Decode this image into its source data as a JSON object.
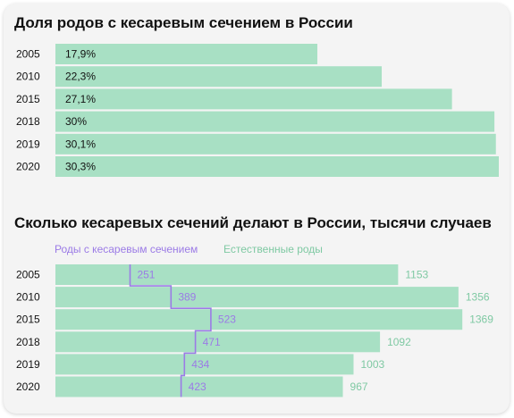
{
  "colors": {
    "bar": "#a8e0c4",
    "caesarean": "#9b7be6",
    "natural": "#7fc9a3",
    "text": "#111111"
  },
  "chart_data": [
    {
      "type": "bar",
      "orientation": "horizontal",
      "title": "Доля родов с кесаревым сечением в России",
      "categories": [
        "2005",
        "2010",
        "2015",
        "2018",
        "2019",
        "2020"
      ],
      "values": [
        17.9,
        22.3,
        27.1,
        30,
        30.1,
        30.3
      ],
      "value_labels": [
        "17,9%",
        "22,3%",
        "27,1%",
        "30%",
        "30,1%",
        "30,3%"
      ],
      "xlim": [
        0,
        30.3
      ],
      "grid": false
    },
    {
      "type": "bar",
      "orientation": "horizontal",
      "title": "Сколько кесаревых сечений делают в России, тысячи случаев",
      "categories": [
        "2005",
        "2010",
        "2015",
        "2018",
        "2019",
        "2020"
      ],
      "series": [
        {
          "name": "Роды с кесаревым сечением",
          "values": [
            251,
            389,
            523,
            471,
            434,
            423
          ],
          "style": "step-line"
        },
        {
          "name": "Естественные роды",
          "values": [
            1153,
            1356,
            1369,
            1092,
            1003,
            967
          ],
          "style": "bar"
        }
      ],
      "legend": "top-left",
      "grid": false
    }
  ]
}
